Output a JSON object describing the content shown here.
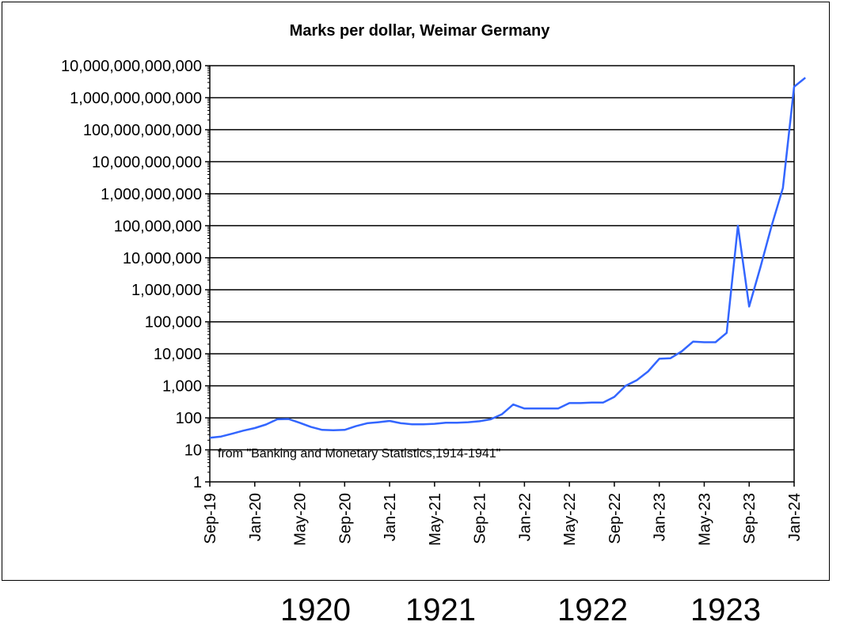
{
  "chart_data": {
    "type": "line",
    "title": "Marks per dollar, Weimar Germany",
    "xlabel": "",
    "ylabel": "",
    "y_scale": "log",
    "ylim": [
      1,
      10000000000000
    ],
    "xlim": [
      "Sep-19",
      "Jan-24"
    ],
    "grid": "horizontal",
    "annotation": "from \"Banking and Monetary Statistics,1914-1941\"",
    "y_tick_labels": [
      "1",
      "10",
      "100",
      "1,000",
      "10,000",
      "100,000",
      "1,000,000",
      "10,000,000",
      "100,000,000",
      "1,000,000,000",
      "10,000,000,000",
      "100,000,000,000",
      "1,000,000,000,000",
      "10,000,000,000,000"
    ],
    "x_tick_labels": [
      "Sep-19",
      "Jan-20",
      "May-20",
      "Sep-20",
      "Jan-21",
      "May-21",
      "Sep-21",
      "Jan-22",
      "May-22",
      "Sep-22",
      "Jan-23",
      "May-23",
      "Sep-23",
      "Jan-24"
    ],
    "series": [
      {
        "color": "#3366ff",
        "points": [
          [
            "1919-09",
            24
          ],
          [
            "1919-10",
            26
          ],
          [
            "1919-11",
            32
          ],
          [
            "1919-12",
            40
          ],
          [
            "1920-01",
            48
          ],
          [
            "1920-02",
            62
          ],
          [
            "1920-03",
            90
          ],
          [
            "1920-04",
            92
          ],
          [
            "1920-05",
            70
          ],
          [
            "1920-06",
            52
          ],
          [
            "1920-07",
            42
          ],
          [
            "1920-08",
            41
          ],
          [
            "1920-09",
            42
          ],
          [
            "1920-10",
            55
          ],
          [
            "1920-11",
            68
          ],
          [
            "1920-12",
            73
          ],
          [
            "1921-01",
            80
          ],
          [
            "1921-02",
            68
          ],
          [
            "1921-03",
            63
          ],
          [
            "1921-04",
            63
          ],
          [
            "1921-05",
            65
          ],
          [
            "1921-06",
            70
          ],
          [
            "1921-07",
            70
          ],
          [
            "1921-08",
            73
          ],
          [
            "1921-09",
            78
          ],
          [
            "1921-10",
            90
          ],
          [
            "1921-11",
            130
          ],
          [
            "1921-12",
            262
          ],
          [
            "1922-01",
            196
          ],
          [
            "1922-02",
            196
          ],
          [
            "1922-03",
            196
          ],
          [
            "1922-04",
            196
          ],
          [
            "1922-05",
            290
          ],
          [
            "1922-06",
            290
          ],
          [
            "1922-07",
            300
          ],
          [
            "1922-08",
            300
          ],
          [
            "1922-09",
            450
          ],
          [
            "1922-10",
            1000
          ],
          [
            "1922-11",
            1500
          ],
          [
            "1922-12",
            2800
          ],
          [
            "1923-01",
            7000
          ],
          [
            "1923-02",
            7300
          ],
          [
            "1923-03",
            12000
          ],
          [
            "1923-04",
            24000
          ],
          [
            "1923-05",
            23000
          ],
          [
            "1923-06",
            23000
          ],
          [
            "1923-07",
            45000
          ],
          [
            "1923-08",
            100000000
          ],
          [
            "1923-09",
            300000
          ],
          [
            "1923-10",
            5000000
          ],
          [
            "1923-11",
            100000000
          ],
          [
            "1923-12",
            1500000000
          ],
          [
            "1924-01",
            2200000000000
          ],
          [
            "1924-02",
            4200000000000
          ]
        ]
      }
    ]
  },
  "year_labels": [
    "1920",
    "1921",
    "1922",
    "1923"
  ]
}
